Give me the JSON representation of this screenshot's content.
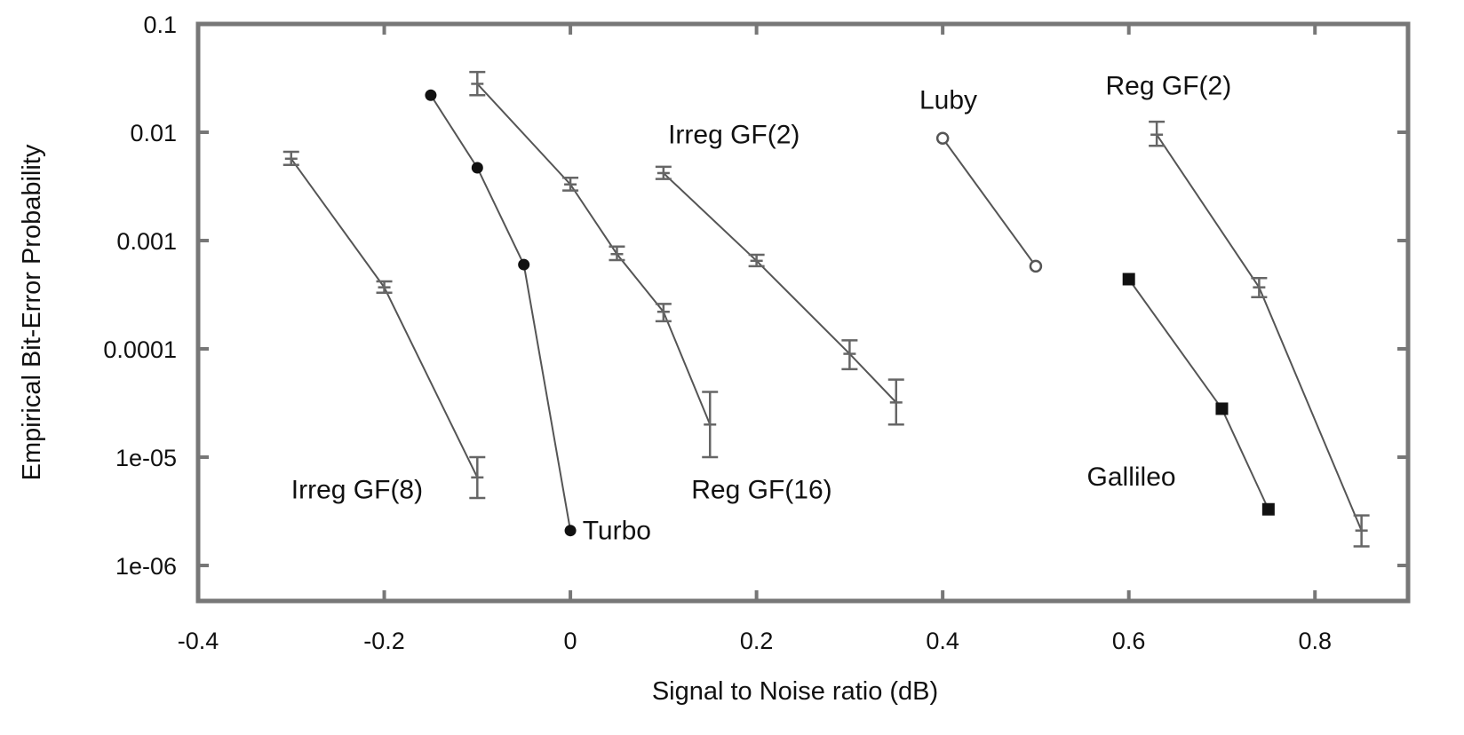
{
  "chart_data": {
    "type": "line",
    "xlabel": "Signal to Noise ratio (dB)",
    "ylabel": "Empirical Bit-Error Probability",
    "xlim": [
      -0.4,
      0.9
    ],
    "ylim": [
      5e-07,
      0.1
    ],
    "yscale": "log",
    "grid": false,
    "x_ticks": [
      -0.4,
      -0.2,
      0,
      0.2,
      0.4,
      0.6,
      0.8
    ],
    "x_tick_labels": [
      "-0.4",
      "-0.2",
      "0",
      "0.2",
      "0.4",
      "0.6",
      "0.8"
    ],
    "y_ticks": [
      0.1,
      0.01,
      0.001,
      0.0001,
      1e-05,
      1e-06
    ],
    "y_tick_labels": [
      "0.1",
      "0.01",
      "0.001",
      "0.0001",
      "1e-05",
      "1e-06"
    ],
    "series": [
      {
        "name": "Irreg GF(8)",
        "marker": "errorbar",
        "x": [
          -0.3,
          -0.2,
          -0.1
        ],
        "y": [
          0.0057,
          0.00037,
          6.5e-06
        ],
        "err_low": [
          0.005,
          0.00033,
          4.2e-06
        ],
        "err_high": [
          0.0066,
          0.00042,
          1e-05
        ]
      },
      {
        "name": "Turbo",
        "marker": "filled-circle",
        "x": [
          -0.15,
          -0.1,
          -0.05,
          0
        ],
        "y": [
          0.022,
          0.0047,
          0.0006,
          2.1e-06
        ]
      },
      {
        "name": "Reg GF(16)",
        "marker": "errorbar",
        "x": [
          -0.1,
          0,
          0.05,
          0.1,
          0.15
        ],
        "y": [
          0.028,
          0.0033,
          0.00075,
          0.00022,
          2e-05
        ],
        "err_low": [
          0.022,
          0.0029,
          0.00066,
          0.00018,
          1e-05
        ],
        "err_high": [
          0.036,
          0.0038,
          0.00088,
          0.00026,
          4e-05
        ]
      },
      {
        "name": "Irreg GF(2)",
        "marker": "errorbar",
        "x": [
          0.1,
          0.2,
          0.3,
          0.35
        ],
        "y": [
          0.0042,
          0.00065,
          9e-05,
          3.2e-05
        ],
        "err_low": [
          0.0037,
          0.00058,
          6.5e-05,
          2e-05
        ],
        "err_high": [
          0.0048,
          0.00074,
          0.00012,
          5.2e-05
        ]
      },
      {
        "name": "Luby",
        "marker": "open-circle",
        "x": [
          0.4,
          0.5
        ],
        "y": [
          0.0088,
          0.00058
        ]
      },
      {
        "name": "Reg GF(2)",
        "marker": "errorbar",
        "x": [
          0.63,
          0.74,
          0.85
        ],
        "y": [
          0.0095,
          0.00037,
          2.1e-06
        ],
        "err_low": [
          0.0075,
          0.0003,
          1.5e-06
        ],
        "err_high": [
          0.0125,
          0.00045,
          2.9e-06
        ]
      },
      {
        "name": "Gallileo",
        "marker": "filled-square",
        "x": [
          0.6,
          0.7,
          0.75
        ],
        "y": [
          0.00044,
          2.8e-05,
          3.3e-06
        ]
      }
    ],
    "annotations": [
      {
        "text": "Irreg GF(8)",
        "x": -0.3,
        "y": 5e-06
      },
      {
        "text": "Turbo",
        "x": 0.013,
        "y": 2.1e-06
      },
      {
        "text": "Reg GF(16)",
        "x": 0.13,
        "y": 5e-06
      },
      {
        "text": "Irreg GF(2)",
        "x": 0.105,
        "y": 0.0095
      },
      {
        "text": "Luby",
        "x": 0.375,
        "y": 0.02
      },
      {
        "text": "Reg GF(2)",
        "x": 0.575,
        "y": 0.027
      },
      {
        "text": "Gallileo",
        "x": 0.555,
        "y": 6.6e-06
      }
    ]
  }
}
